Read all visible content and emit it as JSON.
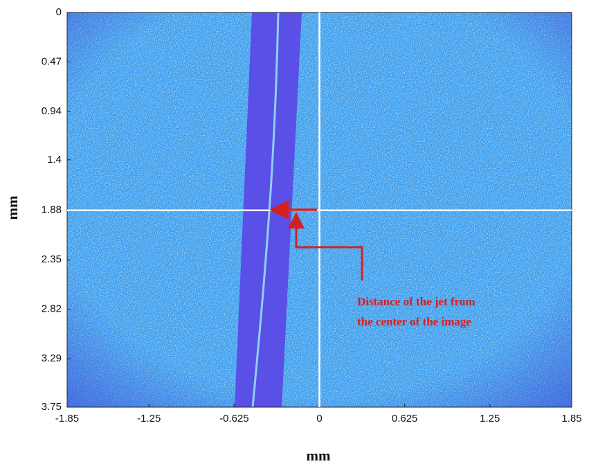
{
  "chart_data": {
    "type": "image",
    "xlabel": "mm",
    "ylabel": "mm",
    "xlim": [
      -1.85,
      1.85
    ],
    "xticks": [
      -1.85,
      -1.25,
      -0.625,
      0,
      0.625,
      1.25,
      1.85
    ],
    "ylim": [
      3.75,
      0
    ],
    "yticks": [
      0,
      0.47,
      0.94,
      1.4,
      1.88,
      2.35,
      2.82,
      3.29,
      3.75
    ],
    "crosshair": {
      "x": 0,
      "y": 1.88,
      "color": "#ffffff"
    },
    "annotation": [
      "Distance of the jet from",
      "the center of the image"
    ],
    "annotation_color": "#d42020"
  }
}
